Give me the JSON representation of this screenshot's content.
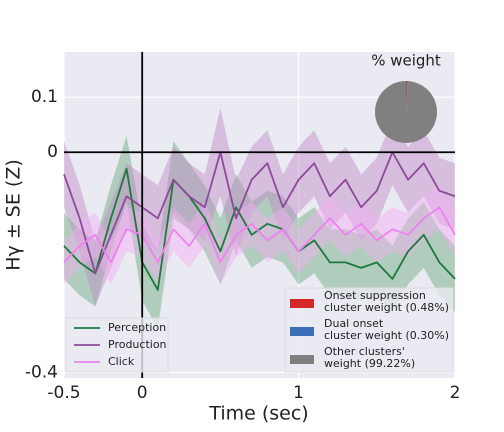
{
  "chart_data": {
    "type": "line",
    "xlabel": "Time (sec)",
    "ylabel": "Hγ ± SE (Z)",
    "xlim": [
      -0.5,
      2
    ],
    "ylim": [
      -0.41,
      0.182
    ],
    "xticks": [
      -0.5,
      0,
      1,
      2
    ],
    "yticks": [
      0.1,
      0,
      -0.4
    ],
    "grid": true,
    "reference_lines": {
      "x": 0,
      "y": 0
    },
    "legend": "lower left",
    "x": [
      -0.5,
      -0.4,
      -0.3,
      -0.2,
      -0.1,
      0,
      0.1,
      0.2,
      0.3,
      0.4,
      0.5,
      0.6,
      0.7,
      0.8,
      0.9,
      1.0,
      1.1,
      1.2,
      1.3,
      1.4,
      1.5,
      1.6,
      1.7,
      1.8,
      1.9,
      2.0
    ],
    "series": [
      {
        "name": "Perception",
        "color": "#1e7a3c",
        "band_color": "#6aa97a",
        "values": [
          -0.17,
          -0.2,
          -0.22,
          -0.12,
          -0.03,
          -0.2,
          -0.25,
          -0.05,
          -0.08,
          -0.12,
          -0.18,
          -0.1,
          -0.15,
          -0.13,
          -0.14,
          -0.18,
          -0.16,
          -0.2,
          -0.2,
          -0.21,
          -0.2,
          -0.23,
          -0.18,
          -0.15,
          -0.2,
          -0.23
        ],
        "se": [
          0.06,
          0.06,
          0.06,
          0.06,
          0.06,
          0.07,
          0.07,
          0.07,
          0.06,
          0.06,
          0.06,
          0.06,
          0.06,
          0.06,
          0.06,
          0.06,
          0.06,
          0.06,
          0.06,
          0.06,
          0.06,
          0.06,
          0.06,
          0.06,
          0.06,
          0.06
        ]
      },
      {
        "name": "Production",
        "color": "#8e4a9a",
        "band_color": "#c08ac8",
        "values": [
          -0.04,
          -0.12,
          -0.22,
          -0.15,
          -0.08,
          -0.1,
          -0.12,
          -0.05,
          -0.08,
          -0.1,
          0.0,
          -0.12,
          -0.05,
          -0.02,
          -0.1,
          -0.05,
          -0.02,
          -0.08,
          -0.05,
          -0.1,
          -0.07,
          0.0,
          -0.05,
          -0.02,
          -0.07,
          -0.08
        ],
        "se": [
          0.06,
          0.06,
          0.06,
          0.06,
          0.06,
          0.06,
          0.06,
          0.06,
          0.06,
          0.06,
          0.08,
          0.07,
          0.06,
          0.06,
          0.06,
          0.06,
          0.06,
          0.06,
          0.06,
          0.06,
          0.06,
          0.06,
          0.06,
          0.06,
          0.06,
          0.06
        ]
      },
      {
        "name": "Click",
        "color": "#f080f0",
        "band_color": "#f4b0f4",
        "values": [
          -0.2,
          -0.17,
          -0.15,
          -0.2,
          -0.14,
          -0.15,
          -0.2,
          -0.14,
          -0.17,
          -0.13,
          -0.2,
          -0.15,
          -0.13,
          -0.16,
          -0.14,
          -0.18,
          -0.15,
          -0.12,
          -0.15,
          -0.13,
          -0.16,
          -0.14,
          -0.15,
          -0.12,
          -0.1,
          -0.15
        ],
        "se": [
          0.04,
          0.04,
          0.04,
          0.04,
          0.04,
          0.04,
          0.04,
          0.04,
          0.04,
          0.04,
          0.04,
          0.04,
          0.04,
          0.04,
          0.04,
          0.04,
          0.04,
          0.04,
          0.04,
          0.04,
          0.04,
          0.04,
          0.04,
          0.04,
          0.04,
          0.04
        ]
      }
    ],
    "pie": {
      "type": "pie",
      "title": "% weight",
      "values": [
        0.48,
        0.3,
        99.22
      ],
      "colors": [
        "#d62728",
        "#3a6fb8",
        "#808080"
      ],
      "labels": [
        [
          "Onset suppression",
          "cluster weight (0.48%)"
        ],
        [
          "Dual onset",
          "cluster weight (0.30%)"
        ],
        [
          "Other clusters'",
          "weight (99.22%)"
        ]
      ]
    }
  }
}
